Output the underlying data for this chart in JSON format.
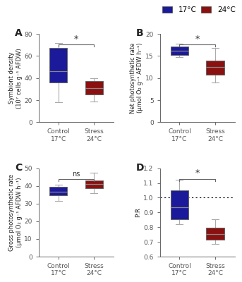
{
  "blue_color": "#1a1a9a",
  "red_color": "#8b1010",
  "panels": {
    "A": {
      "ylabel": "Symbiont density\n(10⁷ cells g⁻¹ AFDW)",
      "ylim": [
        0,
        80
      ],
      "yticks": [
        0,
        20,
        40,
        60,
        80
      ],
      "significance": "*",
      "control": {
        "q1": 36,
        "median": 46,
        "q3": 67,
        "whisker_low": 18,
        "whisker_high": 72
      },
      "stress": {
        "q1": 25,
        "median": 31,
        "q3": 37,
        "whisker_low": 19,
        "whisker_high": 40
      }
    },
    "B": {
      "ylabel": "Net photosynthetic rate\n(µmol O₂ g⁻¹ AFDW h⁻¹)",
      "ylim": [
        0,
        20
      ],
      "yticks": [
        0,
        5,
        10,
        15,
        20
      ],
      "significance": "*",
      "control": {
        "q1": 15.2,
        "median": 16.2,
        "q3": 17.2,
        "whisker_low": 14.8,
        "whisker_high": 17.8
      },
      "stress": {
        "q1": 10.8,
        "median": 12.5,
        "q3": 14.0,
        "whisker_low": 9.0,
        "whisker_high": 16.8
      }
    },
    "C": {
      "ylabel": "Gross photosynthetic rate\n(µmol O₂ g⁻¹ AFDW h⁻¹)",
      "ylim": [
        0,
        50
      ],
      "yticks": [
        0,
        10,
        20,
        30,
        40,
        50
      ],
      "significance": "ns",
      "control": {
        "q1": 34.5,
        "median": 36.5,
        "q3": 39.5,
        "whisker_low": 31.5,
        "whisker_high": 40.5
      },
      "stress": {
        "q1": 38.5,
        "median": 41.0,
        "q3": 43.0,
        "whisker_low": 36.0,
        "whisker_high": 47.5
      }
    },
    "D": {
      "ylabel": "P:R",
      "ylim": [
        0.6,
        1.2
      ],
      "yticks": [
        0.6,
        0.7,
        0.8,
        0.9,
        1.0,
        1.1,
        1.2
      ],
      "significance": "*",
      "hline": 1.0,
      "control": {
        "q1": 0.855,
        "median": 0.935,
        "q3": 1.05,
        "whisker_low": 0.82,
        "whisker_high": 1.12
      },
      "stress": {
        "q1": 0.715,
        "median": 0.755,
        "q3": 0.795,
        "whisker_low": 0.685,
        "whisker_high": 0.855
      }
    }
  }
}
